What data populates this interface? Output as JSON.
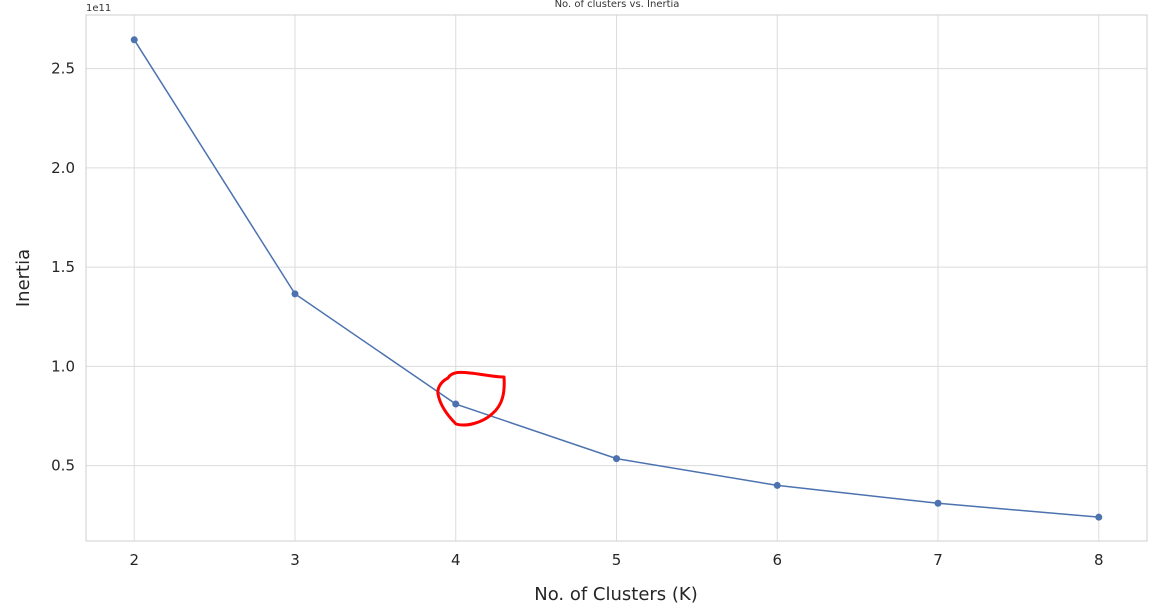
{
  "chart_data": {
    "type": "line",
    "title": "No. of clusters vs. Inertia",
    "xlabel": "No. of Clusters (K)",
    "ylabel": "Inertia",
    "y_offset_label": "1e11",
    "x": [
      2,
      3,
      4,
      5,
      6,
      7,
      8
    ],
    "series": [
      {
        "values": [
          2.645,
          1.365,
          0.81,
          0.535,
          0.4,
          0.31,
          0.24
        ]
      }
    ],
    "x_ticks": [
      "2",
      "3",
      "4",
      "5",
      "6",
      "7",
      "8"
    ],
    "y_ticks": [
      "0.5",
      "1.0",
      "1.5",
      "2.0",
      "2.5"
    ],
    "y_tick_values": [
      0.5,
      1.0,
      1.5,
      2.0,
      2.5
    ],
    "xlim": [
      1.7,
      8.3
    ],
    "ylim": [
      0.12,
      2.77
    ],
    "grid": true,
    "colors": {
      "line": "#4c72b0",
      "highlight": "#ff0000"
    },
    "annotation": {
      "type": "hand-drawn circle",
      "x": 4,
      "color": "#ff0000"
    }
  }
}
